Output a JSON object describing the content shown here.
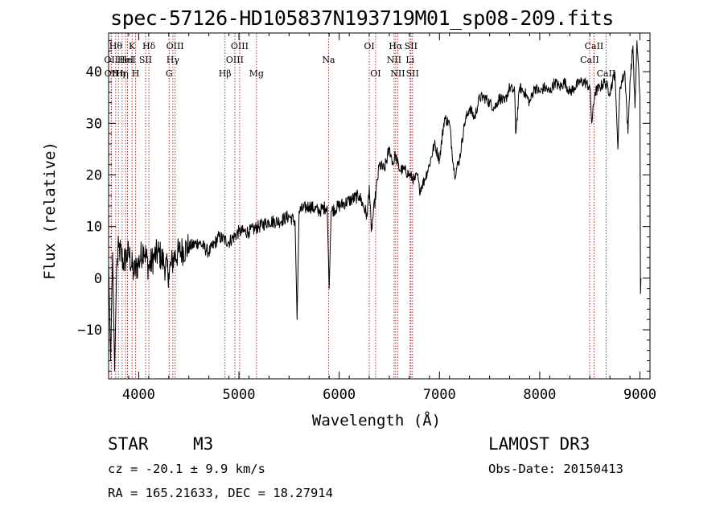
{
  "chart_data": {
    "type": "line",
    "title": "spec-57126-HD105837N193719M01_sp08-209.fits",
    "xlabel": "Wavelength (Å)",
    "ylabel": "Flux (relative)",
    "xlim": [
      3700,
      9100
    ],
    "ylim": [
      -19.5,
      47.5
    ],
    "xticks": [
      4000,
      5000,
      6000,
      7000,
      8000,
      9000
    ],
    "yticks": [
      -10,
      0,
      10,
      20,
      30,
      40
    ],
    "series": [
      {
        "name": "flux",
        "x": [
          3700,
          3720,
          3740,
          3760,
          3780,
          3800,
          3850,
          3900,
          3950,
          4000,
          4050,
          4100,
          4150,
          4200,
          4250,
          4300,
          4350,
          4400,
          4500,
          4600,
          4700,
          4800,
          4900,
          5000,
          5100,
          5200,
          5300,
          5400,
          5500,
          5560,
          5580,
          5600,
          5700,
          5800,
          5880,
          5900,
          5920,
          6000,
          6100,
          6200,
          6280,
          6300,
          6320,
          6400,
          6450,
          6500,
          6540,
          6560,
          6600,
          6650,
          6700,
          6750,
          6780,
          6800,
          6850,
          6900,
          6950,
          7000,
          7050,
          7100,
          7150,
          7200,
          7250,
          7300,
          7350,
          7400,
          7450,
          7500,
          7550,
          7600,
          7650,
          7700,
          7750,
          7760,
          7800,
          7850,
          7900,
          7950,
          8000,
          8050,
          8100,
          8150,
          8200,
          8250,
          8300,
          8350,
          8400,
          8450,
          8500,
          8520,
          8550,
          8600,
          8650,
          8700,
          8750,
          8780,
          8800,
          8850,
          8880,
          8900,
          8930,
          8950,
          8970,
          9000,
          9005,
          9010
        ],
        "y": [
          3,
          -16,
          5,
          -18,
          2,
          6,
          3,
          5,
          1,
          3,
          6,
          2,
          4,
          5,
          3,
          1,
          4,
          5,
          6,
          7,
          5,
          8,
          7,
          9,
          9,
          10,
          11,
          11,
          12,
          11,
          -8,
          13,
          14,
          13,
          14,
          -2,
          13,
          14,
          15,
          16,
          12,
          18,
          9,
          22,
          21,
          25,
          22,
          24,
          21,
          21,
          20,
          19,
          20,
          17,
          19,
          22,
          26,
          23,
          31,
          30,
          20,
          23,
          30,
          33,
          31,
          35,
          35,
          34,
          33,
          35,
          34,
          37,
          36,
          28,
          37,
          36,
          34,
          37,
          36,
          37,
          36,
          38,
          37,
          38,
          36,
          37,
          38,
          38,
          37,
          30,
          36,
          37,
          38,
          36,
          40,
          25,
          37,
          40,
          28,
          38,
          45,
          33,
          46,
          35,
          -3,
          0
        ]
      }
    ],
    "line_markers": [
      {
        "wavelength": 3726,
        "label": "OII",
        "row": 2
      },
      {
        "wavelength": 3729,
        "label": "OII",
        "row": 3
      },
      {
        "wavelength": 3771,
        "label": "Hθ",
        "row": 1
      },
      {
        "wavelength": 3798,
        "label": "Hη",
        "row": 3
      },
      {
        "wavelength": 3835,
        "label": "Hη",
        "row": 3
      },
      {
        "wavelength": 3869,
        "label": "HeI",
        "row": 2
      },
      {
        "wavelength": 3889,
        "label": "HeI",
        "row": 2
      },
      {
        "wavelength": 3934,
        "label": "K",
        "row": 1
      },
      {
        "wavelength": 3969,
        "label": "H",
        "row": 3
      },
      {
        "wavelength": 4069,
        "label": "SII",
        "row": 2
      },
      {
        "wavelength": 4102,
        "label": "Hδ",
        "row": 1
      },
      {
        "wavelength": 4304,
        "label": "G",
        "row": 3
      },
      {
        "wavelength": 4341,
        "label": "Hγ",
        "row": 2
      },
      {
        "wavelength": 4363,
        "label": "OIII",
        "row": 1
      },
      {
        "wavelength": 4861,
        "label": "Hβ",
        "row": 3
      },
      {
        "wavelength": 4959,
        "label": "OIII",
        "row": 2
      },
      {
        "wavelength": 5007,
        "label": "OIII",
        "row": 1
      },
      {
        "wavelength": 5175,
        "label": "Mg",
        "row": 3
      },
      {
        "wavelength": 5894,
        "label": "Na",
        "row": 2
      },
      {
        "wavelength": 6300,
        "label": "OI",
        "row": 1
      },
      {
        "wavelength": 6363,
        "label": "OI",
        "row": 3
      },
      {
        "wavelength": 6548,
        "label": "NII",
        "row": 2
      },
      {
        "wavelength": 6563,
        "label": "Hα",
        "row": 1
      },
      {
        "wavelength": 6584,
        "label": "NII",
        "row": 3
      },
      {
        "wavelength": 6707,
        "label": "Li",
        "row": 2
      },
      {
        "wavelength": 6716,
        "label": "SII",
        "row": 1
      },
      {
        "wavelength": 6731,
        "label": "SII",
        "row": 3
      },
      {
        "wavelength": 8498,
        "label": "CaII",
        "row": 2
      },
      {
        "wavelength": 8542,
        "label": "CaII",
        "row": 1
      },
      {
        "wavelength": 8662,
        "label": "CaII",
        "row": 3
      }
    ]
  },
  "info": {
    "object_class": "STAR",
    "subclass": "M3",
    "survey": "LAMOST DR3",
    "redshift": "cz = -20.1 ± 9.9 km/s",
    "obs_date": "Obs-Date: 20150413",
    "coords": "RA = 165.21633, DEC =  18.27914"
  }
}
